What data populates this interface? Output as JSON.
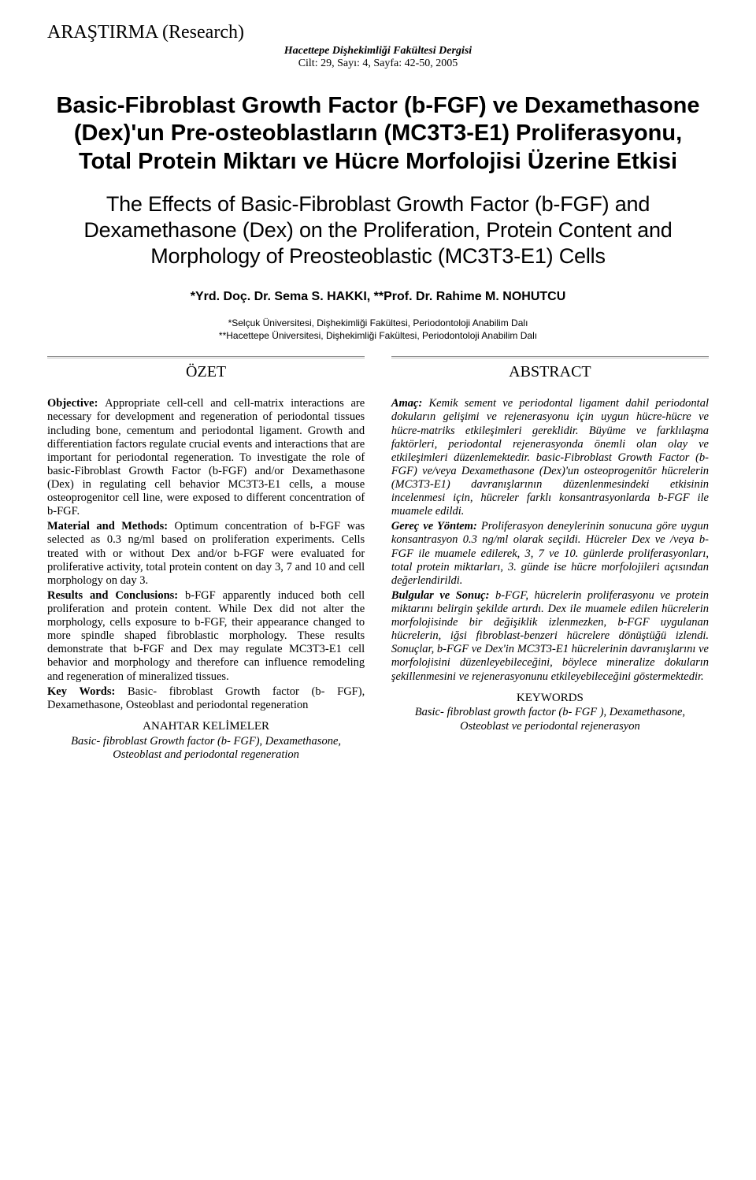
{
  "header": {
    "research_tag": "ARAŞTIRMA (Research)",
    "journal_line1": "Hacettepe Dişhekimliği Fakültesi Dergisi",
    "journal_line2": "Cilt: 29, Sayı: 4, Sayfa: 42-50, 2005"
  },
  "title": "Basic-Fibroblast Growth Factor (b-FGF) ve Dexamethasone (Dex)'un Pre-osteoblastların (MC3T3-E1) Proliferasyonu, Total Protein Miktarı ve Hücre Morfolojisi Üzerine Etkisi",
  "subtitle": "The Effects of Basic-Fibroblast Growth Factor (b-FGF) and Dexamethasone (Dex) on the Proliferation, Protein Content and Morphology of Preosteoblastic (MC3T3-E1) Cells",
  "authors": "*Yrd. Doç. Dr. Sema S. HAKKI, **Prof. Dr. Rahime M. NOHUTCU",
  "affiliations": {
    "a1": "*Selçuk Üniversitesi, Dişhekimliği Fakültesi, Periodontoloji Anabilim Dalı",
    "a2": "**Hacettepe Üniversitesi, Dişhekimliği Fakültesi, Periodontoloji Anabilim Dalı"
  },
  "section_labels": {
    "ozet": "ÖZET",
    "abstract": "ABSTRACT"
  },
  "left": {
    "p1_lead": "Objective: ",
    "p1": "Appropriate cell-cell and cell-matrix interactions are necessary for development and regeneration of periodontal tissues including bone, cementum and periodontal ligament. Growth and differentiation factors regulate crucial events and interactions that are important for periodontal regeneration. To investigate the role of basic-Fibroblast Growth Factor (b-FGF) and/or Dexamethasone (Dex) in regulating cell behavior MC3T3-E1 cells, a mouse osteoprogenitor cell line, were exposed to different concentration of b-FGF.",
    "p2_lead": "Material and Methods: ",
    "p2": "Optimum concentration of b-FGF was selected as 0.3 ng/ml based on proliferation experiments. Cells treated with or without Dex and/or b-FGF were evaluated for proliferative activity, total protein content on day 3, 7 and 10 and cell morphology on day 3.",
    "p3_lead": "Results and Conclusions: ",
    "p3": "b-FGF apparently induced both cell proliferation and protein content. While Dex did not alter the morphology, cells exposure to b-FGF, their appearance changed to more spindle shaped fibroblastic morphology. These results demonstrate that b-FGF and Dex may regulate MC3T3-E1 cell behavior and morphology and therefore can influence remodeling and regeneration of mineralized tissues.",
    "p4_lead": "Key Words: ",
    "p4": "Basic- fibroblast Growth factor (b- FGF), Dexamethasone, Osteoblast and periodontal regeneration",
    "kw_title": "ANAHTAR KELİMELER",
    "kw_text": "Basic- fibroblast Growth factor (b- FGF), Dexamethasone, Osteoblast and periodontal regeneration"
  },
  "right": {
    "p1_lead": "Amaç: ",
    "p1": "Kemik sement ve periodontal ligament dahil periodontal dokuların gelişimi ve rejenerasyonu için uygun hücre-hücre ve hücre-matriks etkileşimleri gereklidir. Büyüme ve farklılaşma faktörleri, periodontal rejenerasyonda önemli olan olay ve etkileşimleri düzenlemektedir. basic-Fibroblast Growth Factor (b-FGF) ve/veya Dexamethasone (Dex)'un osteoprogenitör hücrelerin (MC3T3-E1) davranışlarının düzenlenmesindeki etkisinin incelenmesi için, hücreler farklı konsantrasyonlarda b-FGF ile muamele edildi.",
    "p2_lead": "Gereç ve Yöntem: ",
    "p2": "Proliferasyon deneylerinin sonucuna göre uygun konsantrasyon 0.3 ng/ml olarak seçildi. Hücreler Dex ve /veya b-FGF ile muamele edilerek, 3, 7 ve 10. günlerde proliferasyonları, total protein miktarları, 3. günde ise hücre morfolojileri açısından değerlendirildi.",
    "p3_lead": "Bulgular ve Sonuç: ",
    "p3": "b-FGF, hücrelerin proliferasyonu ve protein miktarını belirgin şekilde artırdı. Dex ile muamele edilen hücrelerin morfolojisinde bir değişiklik izlenmezken, b-FGF uygulanan hücrelerin, iğsi fibroblast-benzeri hücrelere dönüştüğü izlendi. Sonuçlar, b-FGF ve Dex'in MC3T3-E1 hücrelerinin davranışlarını ve morfolojisini düzenleyebileceğini, böylece mineralize dokuların şekillenmesini ve rejenerasyonunu etkileyebileceğini göstermektedir.",
    "kw_title": "KEYWORDS",
    "kw_text": "Basic- fibroblast growth factor (b- FGF ), Dexamethasone, Osteoblast ve periodontal rejenerasyon"
  }
}
